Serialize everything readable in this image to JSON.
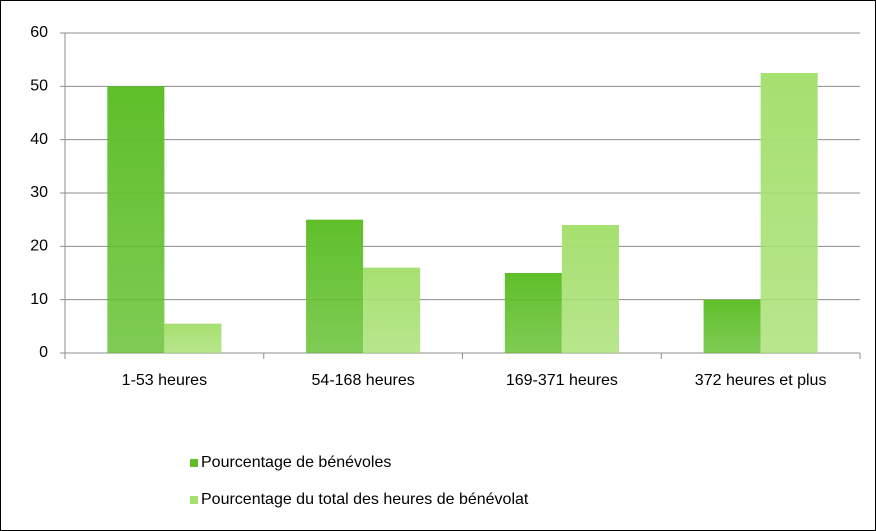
{
  "chart_data": {
    "type": "bar",
    "categories": [
      "1-53 heures",
      "54-168 heures",
      "169-371 heures",
      "372 heures et plus"
    ],
    "series": [
      {
        "name": "Pourcentage de bénévoles",
        "color": "#5fbf2a",
        "values": [
          50,
          25,
          15,
          10
        ]
      },
      {
        "name": "Pourcentage du total des heures de bénévolat",
        "color": "#a6e070",
        "values": [
          5.5,
          16,
          24,
          52.5
        ]
      }
    ],
    "ylim": [
      0,
      60
    ],
    "yticks": [
      0,
      10,
      20,
      30,
      40,
      50,
      60
    ],
    "grid": true
  }
}
